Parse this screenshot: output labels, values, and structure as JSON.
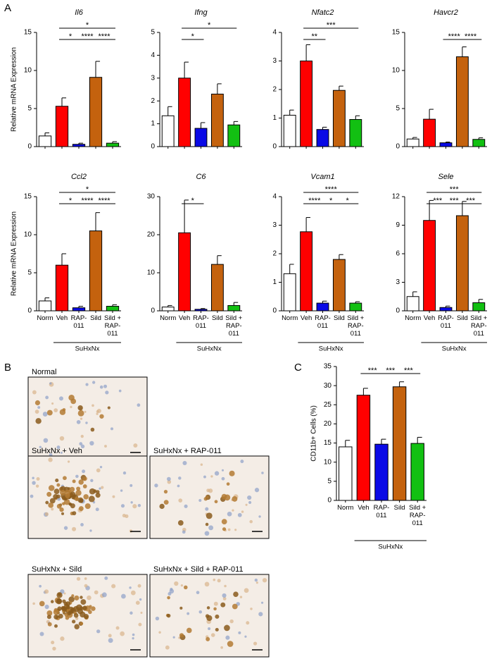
{
  "panel_labels": [
    "A",
    "B",
    "C"
  ],
  "micrographs": [
    "Normal",
    "SuHxNx + Veh",
    "SuHxNx + RAP-011",
    "SuHxNx + Sild",
    "SuHxNx + Sild + RAP-011"
  ],
  "chart_data": [
    {
      "type": "bar",
      "title": "Il6",
      "ylabel": "Relative mRNA Expression",
      "categories": [
        null,
        null,
        null,
        null,
        null
      ],
      "values": [
        1.4,
        5.3,
        0.3,
        9.1,
        0.45
      ],
      "errors": [
        0.4,
        1.1,
        0.15,
        2.1,
        0.2
      ],
      "colors": [
        "#ffffff",
        "#ff0000",
        "#0a0ae6",
        "#c4620e",
        "#12c012"
      ],
      "ylim": [
        0,
        15
      ],
      "yticks": [
        0,
        5,
        10,
        15
      ],
      "significance": [
        {
          "between": [
            1,
            2
          ],
          "label": "*"
        },
        {
          "between": [
            2,
            3
          ],
          "label": "****"
        },
        {
          "between": [
            3,
            4
          ],
          "label": "****"
        },
        {
          "between": [
            1,
            4
          ],
          "label": "*"
        }
      ]
    },
    {
      "type": "bar",
      "title": "Ifng",
      "categories": [
        null,
        null,
        null,
        null,
        null
      ],
      "values": [
        1.35,
        3.0,
        0.8,
        2.3,
        0.95
      ],
      "errors": [
        0.4,
        0.7,
        0.25,
        0.45,
        0.15
      ],
      "colors": [
        "#ffffff",
        "#ff0000",
        "#0a0ae6",
        "#c4620e",
        "#12c012"
      ],
      "ylim": [
        0,
        5
      ],
      "yticks": [
        0,
        1,
        2,
        3,
        4,
        5
      ],
      "significance": [
        {
          "between": [
            1,
            2
          ],
          "label": "*"
        },
        {
          "between": [
            1,
            4
          ],
          "label": "*"
        }
      ]
    },
    {
      "type": "bar",
      "title": "Nfatc2",
      "categories": [
        null,
        null,
        null,
        null,
        null
      ],
      "values": [
        1.1,
        3.0,
        0.6,
        1.97,
        0.95
      ],
      "errors": [
        0.18,
        0.57,
        0.08,
        0.15,
        0.13
      ],
      "colors": [
        "#ffffff",
        "#ff0000",
        "#0a0ae6",
        "#c4620e",
        "#12c012"
      ],
      "ylim": [
        0,
        4
      ],
      "yticks": [
        0,
        1,
        2,
        3,
        4
      ],
      "significance": [
        {
          "between": [
            1,
            2
          ],
          "label": "**"
        },
        {
          "between": [
            1,
            4
          ],
          "label": "***"
        }
      ]
    },
    {
      "type": "bar",
      "title": "Havcr2",
      "categories": [
        null,
        null,
        null,
        null,
        null
      ],
      "values": [
        1.0,
        3.6,
        0.5,
        11.8,
        0.95
      ],
      "errors": [
        0.2,
        1.3,
        0.1,
        1.3,
        0.2
      ],
      "colors": [
        "#ffffff",
        "#ff0000",
        "#0a0ae6",
        "#c4620e",
        "#12c012"
      ],
      "ylim": [
        0,
        15
      ],
      "yticks": [
        0,
        5,
        10,
        15
      ],
      "significance": [
        {
          "between": [
            2,
            3
          ],
          "label": "****"
        },
        {
          "between": [
            3,
            4
          ],
          "label": "****"
        }
      ]
    },
    {
      "type": "bar",
      "title": "Ccl2",
      "ylabel": "Relative mRNA Expression",
      "categories": [
        "Norm",
        "Veh",
        "RAP-\n011",
        "Sild",
        "Sild +\nRAP-\n011"
      ],
      "values": [
        1.3,
        6.0,
        0.4,
        10.5,
        0.6
      ],
      "errors": [
        0.4,
        1.5,
        0.2,
        2.4,
        0.2
      ],
      "colors": [
        "#ffffff",
        "#ff0000",
        "#0a0ae6",
        "#c4620e",
        "#12c012"
      ],
      "ylim": [
        0,
        15
      ],
      "yticks": [
        0,
        5,
        10,
        15
      ],
      "significance": [
        {
          "between": [
            1,
            2
          ],
          "label": "*"
        },
        {
          "between": [
            2,
            3
          ],
          "label": "****"
        },
        {
          "between": [
            3,
            4
          ],
          "label": "****"
        },
        {
          "between": [
            1,
            4
          ],
          "label": "*"
        }
      ],
      "group": {
        "between": [
          1,
          4
        ],
        "label": "SuHxNx"
      }
    },
    {
      "type": "bar",
      "title": "C6",
      "categories": [
        "Norm",
        "Veh",
        "RAP-\n011",
        "Sild",
        "Sild +\nRAP-\n011"
      ],
      "values": [
        1.0,
        20.5,
        0.4,
        12.2,
        1.4
      ],
      "errors": [
        0.4,
        8.6,
        0.2,
        2.3,
        0.8
      ],
      "colors": [
        "#ffffff",
        "#ff0000",
        "#0a0ae6",
        "#c4620e",
        "#12c012"
      ],
      "ylim": [
        0,
        30
      ],
      "yticks": [
        0,
        10,
        20,
        30
      ],
      "significance": [
        {
          "between": [
            1,
            2
          ],
          "label": "*"
        }
      ],
      "group": {
        "between": [
          1,
          4
        ],
        "label": "SuHxNx"
      }
    },
    {
      "type": "bar",
      "title": "Vcam1",
      "categories": [
        "Norm",
        "Veh",
        "RAP-\n011",
        "Sild",
        "Sild +\nRAP-\n011"
      ],
      "values": [
        1.3,
        2.77,
        0.27,
        1.8,
        0.27
      ],
      "errors": [
        0.33,
        0.5,
        0.07,
        0.17,
        0.05
      ],
      "colors": [
        "#ffffff",
        "#ff0000",
        "#0a0ae6",
        "#c4620e",
        "#12c012"
      ],
      "ylim": [
        0,
        4
      ],
      "yticks": [
        0,
        1,
        2,
        3,
        4
      ],
      "significance": [
        {
          "between": [
            1,
            2
          ],
          "label": "****"
        },
        {
          "between": [
            2,
            3
          ],
          "label": "*"
        },
        {
          "between": [
            3,
            4
          ],
          "label": "*"
        },
        {
          "between": [
            1,
            4
          ],
          "label": "****"
        }
      ],
      "group": {
        "between": [
          1,
          4
        ],
        "label": "SuHxNx"
      }
    },
    {
      "type": "bar",
      "title": "Sele",
      "categories": [
        "Norm",
        "Veh",
        "RAP-\n011",
        "Sild",
        "Sild +\nRAP-\n011"
      ],
      "values": [
        1.5,
        9.5,
        0.35,
        10.0,
        0.85
      ],
      "errors": [
        0.5,
        2.1,
        0.15,
        1.5,
        0.35
      ],
      "colors": [
        "#ffffff",
        "#ff0000",
        "#0a0ae6",
        "#c4620e",
        "#12c012"
      ],
      "ylim": [
        0,
        12
      ],
      "yticks": [
        0,
        3,
        6,
        9,
        12
      ],
      "significance": [
        {
          "between": [
            1,
            2
          ],
          "label": "***"
        },
        {
          "between": [
            2,
            3
          ],
          "label": "***"
        },
        {
          "between": [
            3,
            4
          ],
          "label": "***"
        },
        {
          "between": [
            1,
            4
          ],
          "label": "***"
        }
      ],
      "group": {
        "between": [
          1,
          4
        ],
        "label": "SuHxNx"
      }
    },
    {
      "type": "bar",
      "ylabel": "CD11b+ Cells (%)",
      "categories": [
        "Norm",
        "Veh",
        "RAP-\n011",
        "Sild",
        "Sild +\nRAP-\n011"
      ],
      "values": [
        14.0,
        27.5,
        14.7,
        29.7,
        14.9
      ],
      "errors": [
        1.7,
        1.8,
        1.3,
        1.3,
        1.6
      ],
      "colors": [
        "#ffffff",
        "#ff0000",
        "#0a0ae6",
        "#c4620e",
        "#12c012"
      ],
      "ylim": [
        0,
        35
      ],
      "yticks": [
        0,
        5,
        10,
        15,
        20,
        25,
        30,
        35
      ],
      "significance": [
        {
          "between": [
            1,
            2
          ],
          "label": "***"
        },
        {
          "between": [
            2,
            3
          ],
          "label": "***"
        },
        {
          "between": [
            3,
            4
          ],
          "label": "***"
        }
      ],
      "group": {
        "between": [
          1,
          4
        ],
        "label": "SuHxNx"
      }
    }
  ]
}
